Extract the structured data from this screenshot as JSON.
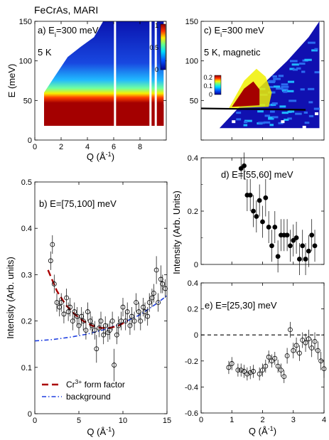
{
  "figure_title": "FeCrAs, MARI",
  "colors": {
    "map_low": "#1010b0",
    "map_mid": "#1fb8ff",
    "map_yellow": "#f0f000",
    "map_high": "#a40000",
    "form_factor": "#aa0000",
    "background": "#1f3fe0",
    "points": "#000000"
  },
  "chart_data": [
    {
      "id": "a",
      "type": "heatmap",
      "panel_label": "a) E",
      "panel_label_sub": "i",
      "panel_label_rest": "=300 meV",
      "temperature": "5 K",
      "xlabel": "Q (Å",
      "xlabel_sup": "-1",
      "xlabel_end": ")",
      "ylabel": "E (meV)",
      "xlim": [
        0,
        10
      ],
      "ylim": [
        0,
        150
      ],
      "xticks": [
        "0",
        "2",
        "4",
        "6",
        "8"
      ],
      "yticks": [
        "0",
        "50",
        "100",
        "150"
      ],
      "colorbar": {
        "range": [
          0,
          1
        ],
        "ticks": [
          "1",
          "0.5",
          "0"
        ]
      },
      "coverage": [
        [
          0.7,
          18
        ],
        [
          0.7,
          60
        ],
        [
          1.5,
          80
        ],
        [
          2.5,
          105
        ],
        [
          3.5,
          118
        ],
        [
          4.5,
          130
        ],
        [
          5.2,
          150
        ],
        [
          9.8,
          150
        ],
        [
          9.8,
          18
        ]
      ],
      "red_top": [
        [
          0.7,
          26
        ],
        [
          2,
          34
        ],
        [
          4,
          40
        ],
        [
          6,
          42
        ],
        [
          8,
          44
        ],
        [
          9.8,
          45
        ]
      ],
      "gaps": [
        6.1,
        8.8,
        9.2
      ]
    },
    {
      "id": "c",
      "type": "heatmap",
      "panel_label": "c) E",
      "panel_label_sub": "i",
      "panel_label_rest": "=300 meV",
      "temperature": "5 K, magnetic",
      "xlabel": "",
      "ylabel": "",
      "xlim": [
        0,
        4
      ],
      "ylim": [
        0,
        150
      ],
      "xticks": [],
      "yticks": [
        "50",
        "100",
        "150"
      ],
      "colorbar": {
        "range": [
          0,
          0.25
        ],
        "ticks": [
          "0.2",
          "0.1",
          "0"
        ]
      },
      "coverage_top": [
        [
          0.6,
          15
        ],
        [
          1.2,
          40
        ],
        [
          2,
          70
        ],
        [
          2.8,
          100
        ],
        [
          3.5,
          130
        ],
        [
          3.85,
          150
        ]
      ],
      "coverage_bottom": [
        [
          0.6,
          15
        ],
        [
          3.85,
          15
        ]
      ],
      "hot_region": [
        [
          0.9,
          40
        ],
        [
          1.4,
          75
        ],
        [
          1.8,
          90
        ],
        [
          2.1,
          80
        ],
        [
          2.3,
          60
        ],
        [
          2.2,
          42
        ]
      ],
      "cut_line": 40
    },
    {
      "id": "b",
      "type": "scatter",
      "panel_label": "b) E=[75,100] meV",
      "xlabel": "Q (Å",
      "xlabel_sup": "-1",
      "xlabel_end": ")",
      "ylabel": "Intensity (Arb. units)",
      "xlim": [
        0,
        15
      ],
      "ylim": [
        0,
        0.5
      ],
      "xticks": [
        "0",
        "5",
        "10",
        "15"
      ],
      "yticks": [
        "0",
        "0.1",
        "0.2",
        "0.3",
        "0.4",
        "0.5"
      ],
      "series": [
        {
          "marker": "open-circle",
          "x": [
            1.8,
            2.0,
            2.2,
            2.5,
            2.8,
            3.0,
            3.3,
            3.6,
            3.8,
            4.0,
            4.3,
            4.5,
            4.8,
            5.0,
            5.3,
            5.5,
            5.8,
            6.0,
            6.3,
            6.5,
            6.8,
            7.0,
            7.3,
            7.5,
            7.8,
            8.0,
            8.3,
            8.5,
            8.8,
            9.0,
            9.3,
            9.5,
            9.8,
            10.0,
            10.3,
            10.5,
            10.8,
            11.0,
            11.3,
            11.5,
            11.8,
            12.0,
            12.3,
            12.5,
            12.8,
            13.0,
            13.3,
            13.5,
            13.8,
            14.0,
            14.3,
            14.5,
            14.8
          ],
          "y": [
            0.33,
            0.365,
            0.28,
            0.24,
            0.23,
            0.24,
            0.215,
            0.25,
            0.22,
            0.23,
            0.2,
            0.22,
            0.21,
            0.19,
            0.21,
            0.2,
            0.18,
            0.22,
            0.2,
            0.19,
            0.18,
            0.14,
            0.185,
            0.2,
            0.17,
            0.19,
            0.175,
            0.18,
            0.2,
            0.105,
            0.17,
            0.19,
            0.2,
            0.23,
            0.2,
            0.22,
            0.19,
            0.21,
            0.2,
            0.24,
            0.22,
            0.2,
            0.23,
            0.22,
            0.21,
            0.24,
            0.25,
            0.26,
            0.31,
            0.24,
            0.29,
            0.28,
            0.27
          ],
          "err": [
            0.02,
            0.02,
            0.02,
            0.02,
            0.02,
            0.02,
            0.02,
            0.02,
            0.02,
            0.02,
            0.02,
            0.02,
            0.02,
            0.02,
            0.02,
            0.02,
            0.02,
            0.02,
            0.02,
            0.02,
            0.02,
            0.03,
            0.02,
            0.02,
            0.02,
            0.02,
            0.02,
            0.02,
            0.02,
            0.035,
            0.02,
            0.02,
            0.02,
            0.02,
            0.02,
            0.02,
            0.02,
            0.02,
            0.02,
            0.02,
            0.02,
            0.02,
            0.02,
            0.02,
            0.02,
            0.02,
            0.02,
            0.02,
            0.03,
            0.02,
            0.03,
            0.02,
            0.02
          ]
        },
        {
          "name": "Cr",
          "name_sup": "3+",
          "name_rest": " form factor",
          "style": "dashed",
          "x": [
            1.5,
            2.5,
            3.5,
            4.5,
            5.5,
            6.5,
            7.5,
            8.5,
            9.5,
            10.5
          ],
          "y": [
            0.31,
            0.265,
            0.235,
            0.215,
            0.2,
            0.19,
            0.185,
            0.185,
            0.19,
            0.2
          ]
        },
        {
          "name": "background",
          "style": "dash-dot",
          "x": [
            0,
            2,
            4,
            6,
            8,
            10,
            12,
            14,
            15
          ],
          "y": [
            0.157,
            0.16,
            0.165,
            0.172,
            0.182,
            0.196,
            0.214,
            0.24,
            0.255
          ]
        }
      ]
    },
    {
      "id": "d",
      "type": "scatter",
      "panel_label": "d) E=[55,60] meV",
      "xlabel": "",
      "ylabel": "Intensity (Arb. Units)",
      "xlim": [
        0,
        4
      ],
      "ylim": [
        0,
        0.4
      ],
      "xticks": [],
      "yticks": [
        "0",
        "0.2",
        "0.4"
      ],
      "series": [
        {
          "marker": "filled-circle",
          "x": [
            1.3,
            1.4,
            1.5,
            1.6,
            1.7,
            1.8,
            1.9,
            2.0,
            2.1,
            2.2,
            2.3,
            2.4,
            2.5,
            2.6,
            2.7,
            2.8,
            2.9,
            3.0,
            3.1,
            3.2,
            3.3,
            3.4,
            3.5,
            3.6,
            3.7
          ],
          "y": [
            0.36,
            0.37,
            0.26,
            0.26,
            0.2,
            0.18,
            0.24,
            0.16,
            0.25,
            0.14,
            0.07,
            0.14,
            0.03,
            0.11,
            0.11,
            0.11,
            0.07,
            0.09,
            0.1,
            0.02,
            0.07,
            0.02,
            0.05,
            0.11,
            0.07
          ],
          "err": [
            0.04,
            0.05,
            0.06,
            0.06,
            0.06,
            0.06,
            0.06,
            0.06,
            0.07,
            0.06,
            0.06,
            0.06,
            0.06,
            0.06,
            0.06,
            0.06,
            0.06,
            0.06,
            0.06,
            0.06,
            0.06,
            0.06,
            0.06,
            0.06,
            0.06
          ]
        }
      ]
    },
    {
      "id": "e",
      "type": "scatter",
      "panel_label": "e) E=[25,30] meV",
      "xlabel": "Q (Å",
      "xlabel_sup": "-1",
      "xlabel_end": ")",
      "ylabel": "",
      "xlim": [
        0,
        4
      ],
      "ylim": [
        -0.6,
        0.4
      ],
      "xticks": [
        "0",
        "1",
        "2",
        "3",
        "4"
      ],
      "yticks": [
        "-0.6",
        "-0.4",
        "-0.2",
        "0",
        "0.2",
        "0.4"
      ],
      "zero_line": 0,
      "series": [
        {
          "marker": "open-circle",
          "x": [
            0.9,
            1.0,
            1.2,
            1.3,
            1.4,
            1.5,
            1.6,
            1.7,
            1.9,
            2.0,
            2.1,
            2.2,
            2.3,
            2.4,
            2.5,
            2.6,
            2.7,
            2.8,
            2.9,
            3.0,
            3.1,
            3.2,
            3.3,
            3.4,
            3.5,
            3.6,
            3.7,
            3.8,
            3.9,
            4.0
          ],
          "y": [
            -0.25,
            -0.22,
            -0.27,
            -0.27,
            -0.28,
            -0.3,
            -0.29,
            -0.28,
            -0.3,
            -0.27,
            -0.24,
            -0.17,
            -0.2,
            -0.18,
            -0.24,
            -0.27,
            -0.32,
            -0.16,
            0.04,
            -0.12,
            -0.08,
            -0.14,
            -0.04,
            -0.06,
            -0.03,
            -0.1,
            -0.05,
            -0.12,
            -0.2,
            -0.26
          ],
          "err": [
            0.05,
            0.05,
            0.05,
            0.05,
            0.05,
            0.05,
            0.05,
            0.05,
            0.05,
            0.05,
            0.05,
            0.05,
            0.05,
            0.05,
            0.05,
            0.05,
            0.05,
            0.06,
            0.06,
            0.06,
            0.06,
            0.06,
            0.06,
            0.07,
            0.07,
            0.07,
            0.07,
            0.07,
            0.07,
            0.07
          ]
        }
      ]
    }
  ]
}
